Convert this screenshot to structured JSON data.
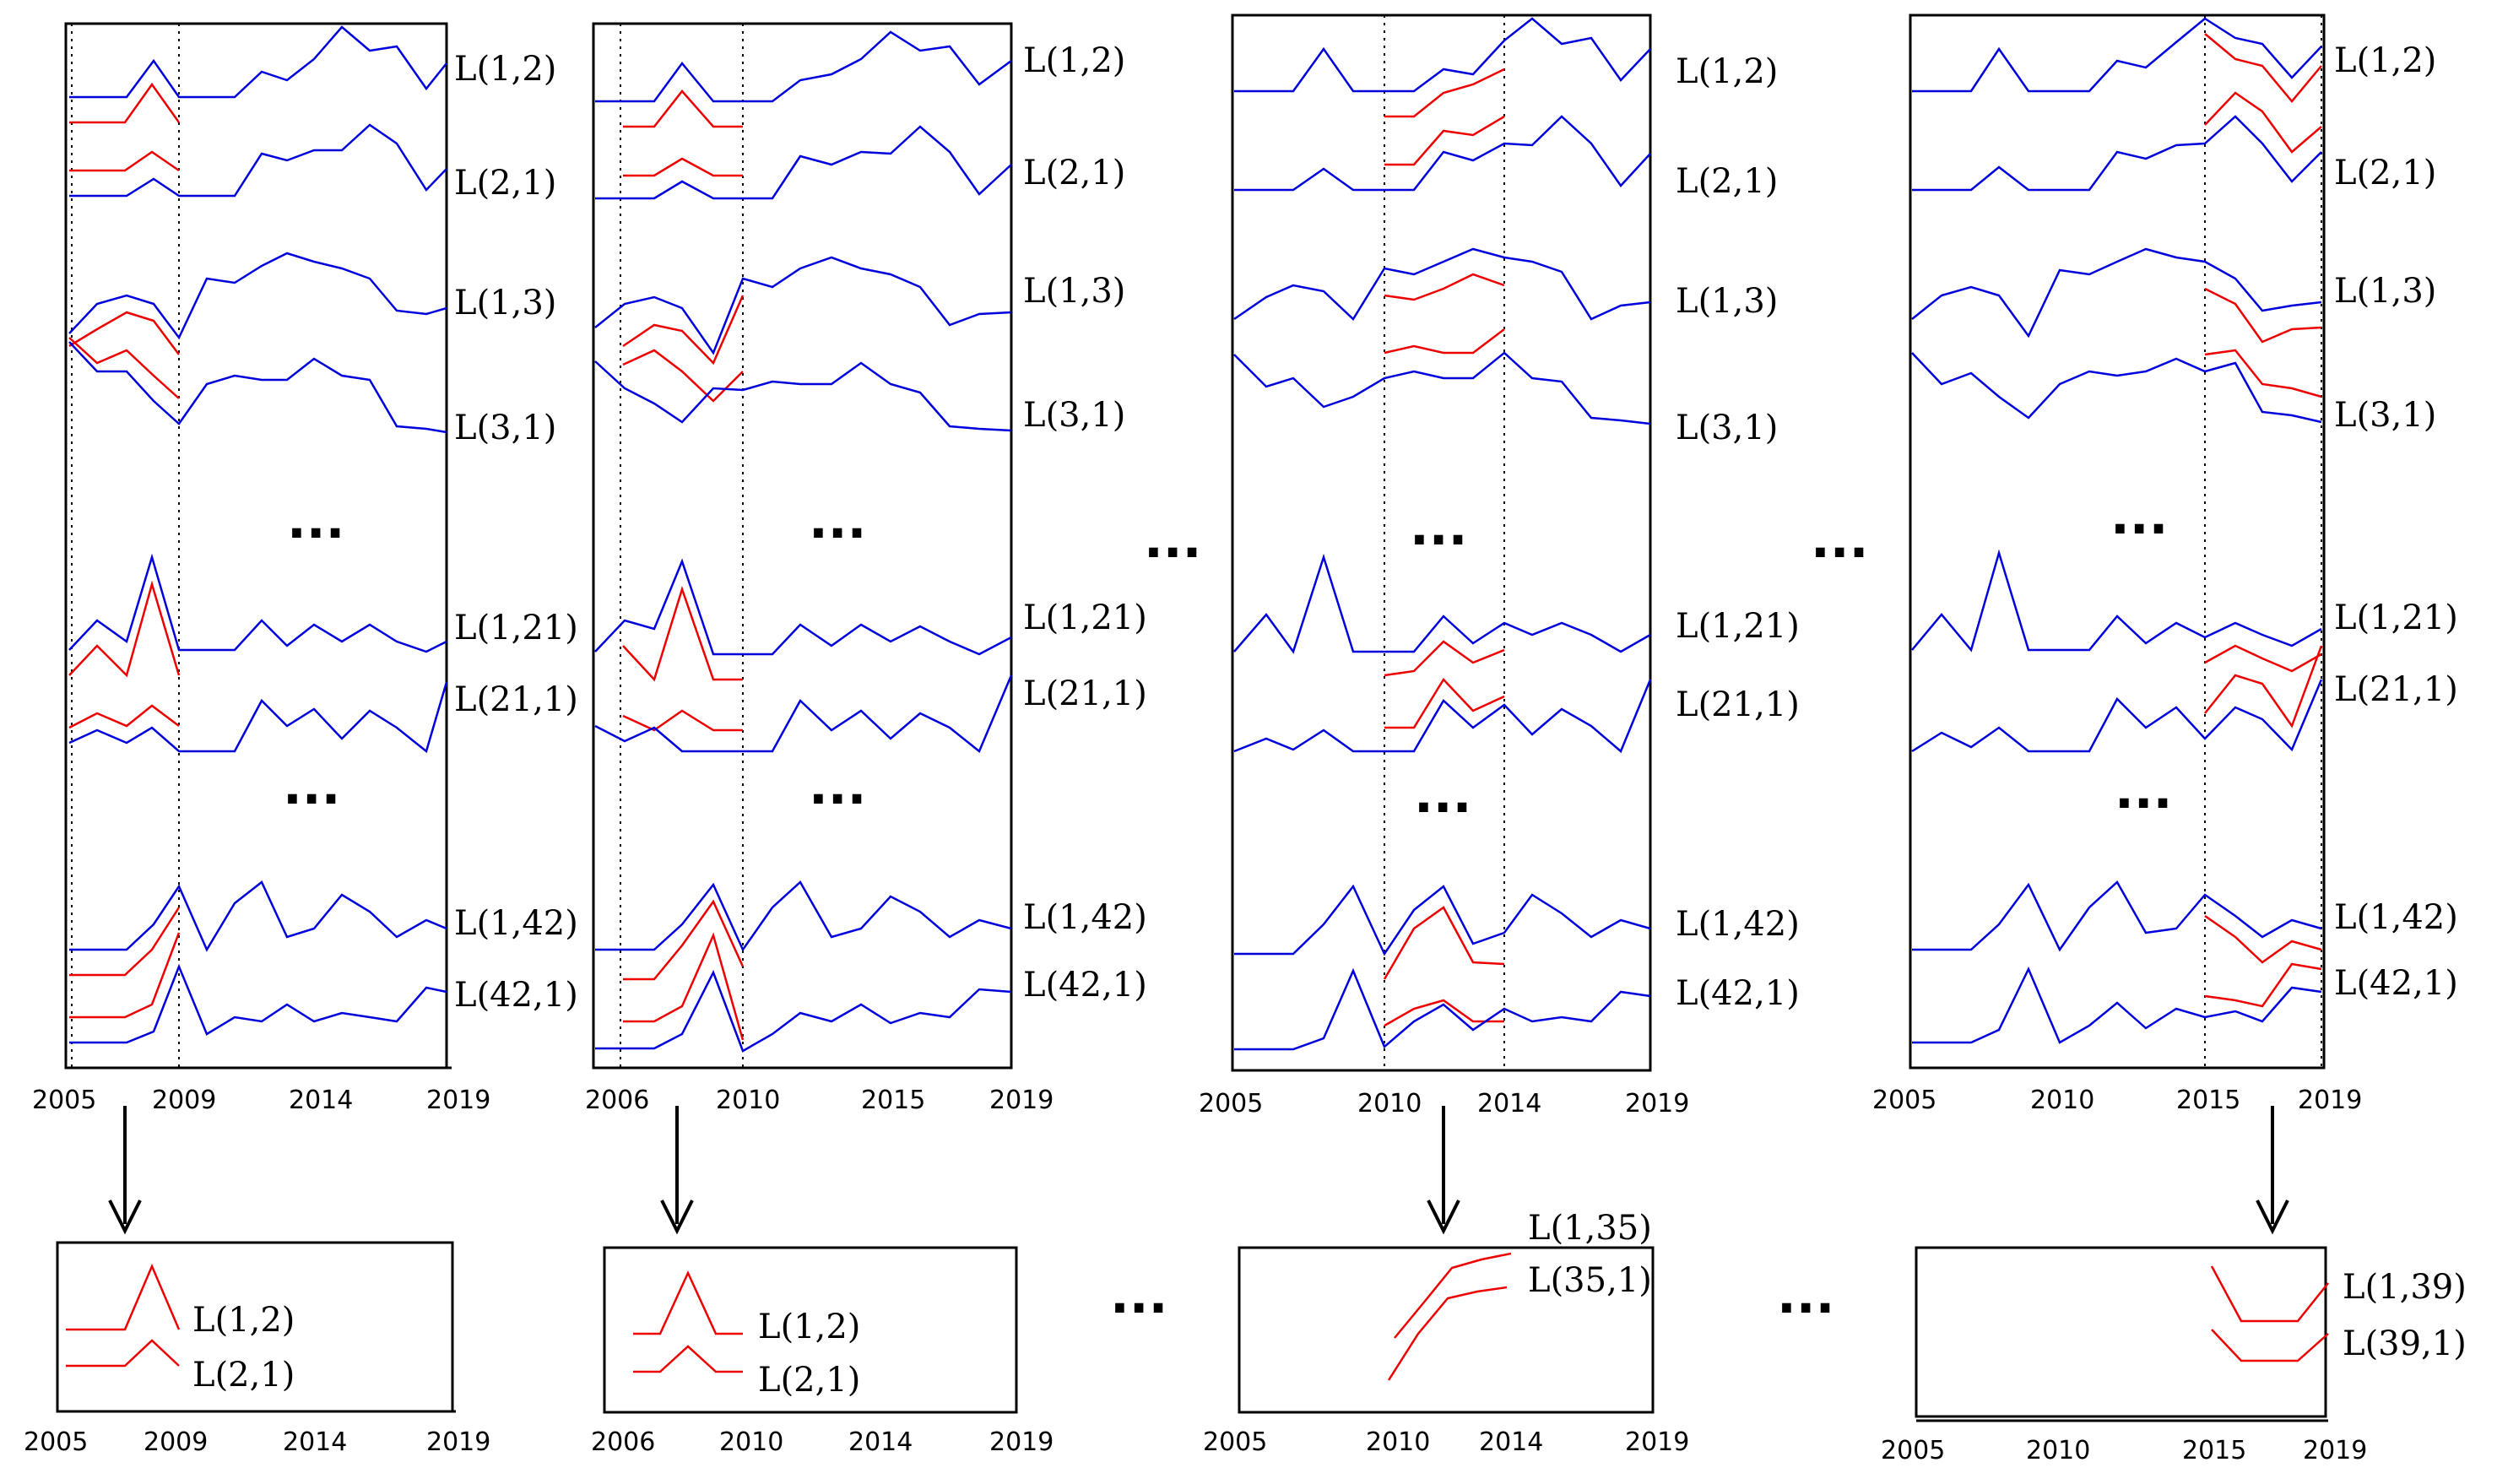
{
  "colors": {
    "series": "#0000dd",
    "window": "#ee0000",
    "axis": "#000000"
  },
  "ellipsis": "...",
  "stage_ellipsis": "...",
  "panels": [
    {
      "name": "panel-2005-2009",
      "ticks": [
        "2005",
        "2009",
        "2014",
        "2019"
      ],
      "labels": [
        "L(1,2)",
        "L(2,1)",
        "L(1,3)",
        "L(3,1)",
        "L(1,21)",
        "L(21,1)",
        "L(1,42)",
        "L(42,1)"
      ],
      "window": [
        "2005",
        "2009"
      ]
    },
    {
      "name": "panel-2006-2010",
      "ticks": [
        "2006",
        "2010",
        "2015",
        "2019"
      ],
      "labels": [
        "L(1,2)",
        "L(2,1)",
        "L(1,3)",
        "L(3,1)",
        "L(1,21)",
        "L(21,1)",
        "L(1,42)",
        "L(42,1)"
      ],
      "window": [
        "2006",
        "2010"
      ]
    },
    {
      "name": "panel-2010-2014",
      "ticks": [
        "2005",
        "2010",
        "2014",
        "2019"
      ],
      "labels": [
        "L(1,2)",
        "L(2,1)",
        "L(1,3)",
        "L(3,1)",
        "L(1,21)",
        "L(21,1)",
        "L(1,42)",
        "L(42,1)"
      ],
      "window": [
        "2010",
        "2014"
      ]
    },
    {
      "name": "panel-2015-2019",
      "ticks": [
        "2005",
        "2010",
        "2015",
        "2019"
      ],
      "labels": [
        "L(1,2)",
        "L(2,1)",
        "L(1,3)",
        "L(3,1)",
        "L(1,21)",
        "L(21,1)",
        "L(1,42)",
        "L(42,1)"
      ],
      "window": [
        "2015",
        "2019"
      ]
    }
  ],
  "results": [
    {
      "name": "result-2005-2009",
      "ticks": [
        "2005",
        "2009",
        "2014",
        "2019"
      ],
      "labels": [
        "L(1,2)",
        "L(2,1)"
      ]
    },
    {
      "name": "result-2006-2010",
      "ticks": [
        "2006",
        "2010",
        "2014",
        "2019"
      ],
      "labels": [
        "L(1,2)",
        "L(2,1)"
      ]
    },
    {
      "name": "result-2010-2014",
      "ticks": [
        "2005",
        "2010",
        "2014",
        "2019"
      ],
      "labels": [
        "L(1,35)",
        "L(35,1)"
      ]
    },
    {
      "name": "result-2015-2019",
      "ticks": [
        "2005",
        "2010",
        "2015",
        "2019"
      ],
      "labels": [
        "L(1,39)",
        "L(39,1)"
      ]
    }
  ]
}
